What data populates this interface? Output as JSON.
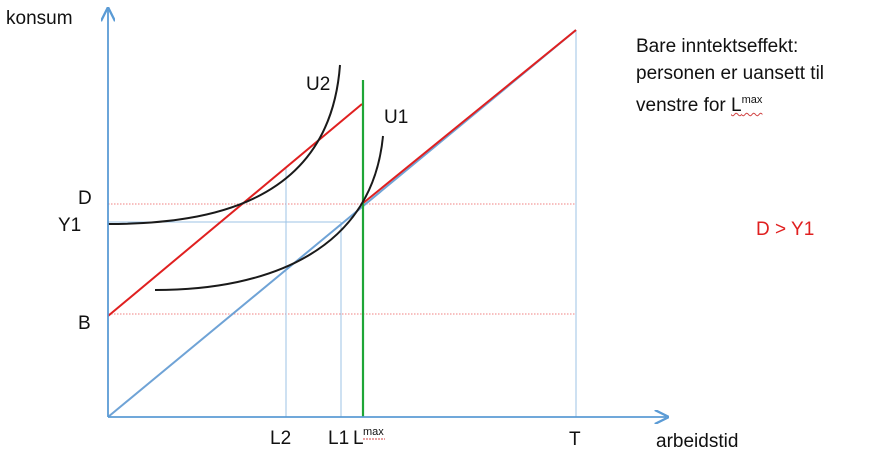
{
  "axes": {
    "y_label": "konsum",
    "x_label": "arbeidstid"
  },
  "y_ticks": {
    "D": "D",
    "Y1": "Y1",
    "B": "B"
  },
  "x_ticks": {
    "L2": "L2",
    "L1": "L1",
    "Lmax_base": "L",
    "Lmax_sup": "max",
    "T": "T"
  },
  "curves": {
    "U1": "U1",
    "U2": "U2"
  },
  "note": {
    "line1": "Bare inntektseffekt:",
    "line2": "personen er uansett til",
    "line3_prefix": "venstre for ",
    "line3_base": "L",
    "line3_sup": "max"
  },
  "comparison": "D > Y1",
  "colors": {
    "budget_red": "#e02020",
    "budget_blue": "#6fa3d6",
    "lmax_green": "#1fa637",
    "indiff_black": "#1a1a1a",
    "axis_blue": "#5b9bd5",
    "guide_red": "#f08080"
  }
}
